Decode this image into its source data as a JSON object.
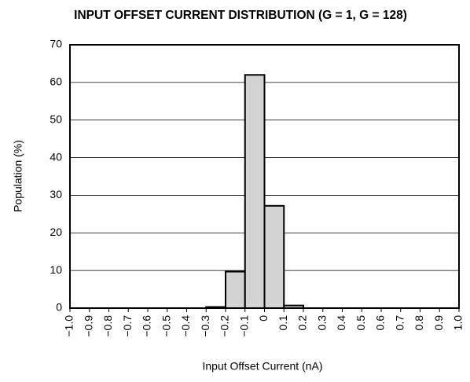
{
  "chart_data": {
    "type": "histogram",
    "title": "INPUT OFFSET CURRENT DISTRIBUTION (G = 1, G = 128)",
    "xlabel": "Input Offset Current (nA)",
    "ylabel": "Population (%)",
    "bins": [
      -0.3,
      -0.2,
      -0.1,
      0,
      0.1,
      0.2
    ],
    "values": [
      0.3,
      9.7,
      62,
      27.2,
      0.7
    ],
    "color": "#d3d3d3",
    "edgecolor": "#000000",
    "xlim": [
      -1,
      1
    ],
    "xticks": [
      {
        "value": -1,
        "label": "−1.0"
      },
      {
        "value": -0.9,
        "label": "−0.9"
      },
      {
        "value": -0.8,
        "label": "−0.8"
      },
      {
        "value": -0.7,
        "label": "−0.7"
      },
      {
        "value": -0.6,
        "label": "−0.6"
      },
      {
        "value": -0.5,
        "label": "−0.5"
      },
      {
        "value": -0.4,
        "label": "−0.4"
      },
      {
        "value": -0.3,
        "label": "−0.3"
      },
      {
        "value": -0.2,
        "label": "−0.2"
      },
      {
        "value": -0.1,
        "label": "−0.1"
      },
      0,
      0.1,
      0.2,
      0.3,
      0.4,
      0.5,
      0.6,
      0.7,
      0.8,
      0.9,
      {
        "value": 1,
        "label": "1.0"
      }
    ],
    "ylim": [
      0,
      70
    ],
    "yticks": [
      0,
      10,
      20,
      30,
      40,
      50,
      60,
      70
    ],
    "grid": true
  }
}
